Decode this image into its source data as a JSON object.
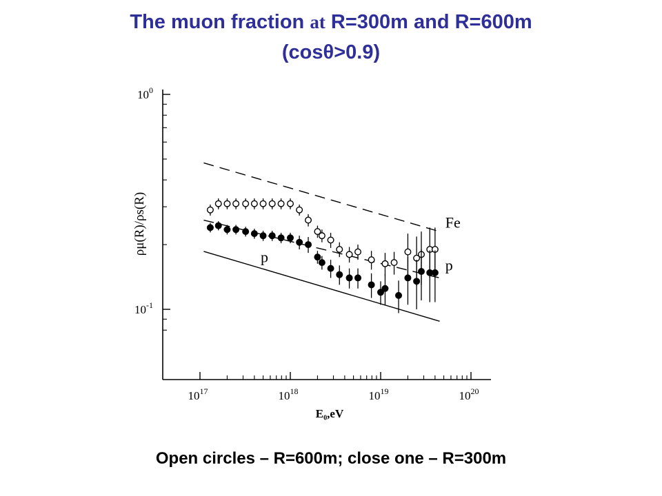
{
  "slide": {
    "title_part1": "The muon fraction ",
    "title_at": "at",
    "title_part2": " R=300m and R=600m",
    "title_line2": "(cosθ>0.9)",
    "caption": "Open circles – R=600m; close one – R=300m"
  },
  "chart_data": {
    "type": "scatter",
    "xlabel": "E₀,eV",
    "ylabel": "ρμ(R)/ρs(R)",
    "x_scale": "log",
    "y_scale": "log",
    "xlim": [
      1e+17,
      1e+20
    ],
    "ylim": [
      0.07,
      1.0
    ],
    "x_ticks": [
      {
        "value": 1e+17,
        "base": "10",
        "exp": "17"
      },
      {
        "value": 1e+18,
        "base": "10",
        "exp": "18"
      },
      {
        "value": 1e+19,
        "base": "10",
        "exp": "19"
      },
      {
        "value": 1e+20,
        "base": "10",
        "exp": "20"
      }
    ],
    "y_ticks": [
      {
        "value": 1.0,
        "base": "10",
        "exp": "0"
      },
      {
        "value": 0.1,
        "base": "10",
        "exp": "-1"
      }
    ],
    "grid": false,
    "series": [
      {
        "name": "R=600m",
        "marker": "open-circle",
        "points": [
          {
            "x": 1.3e+17,
            "y": 0.29,
            "err": 0.017
          },
          {
            "x": 1.6e+17,
            "y": 0.31,
            "err": 0.018
          },
          {
            "x": 2e+17,
            "y": 0.31,
            "err": 0.018
          },
          {
            "x": 2.5e+17,
            "y": 0.31,
            "err": 0.018
          },
          {
            "x": 3.2e+17,
            "y": 0.31,
            "err": 0.018
          },
          {
            "x": 4e+17,
            "y": 0.31,
            "err": 0.018
          },
          {
            "x": 5e+17,
            "y": 0.31,
            "err": 0.018
          },
          {
            "x": 6.3e+17,
            "y": 0.31,
            "err": 0.018
          },
          {
            "x": 7.9e+17,
            "y": 0.31,
            "err": 0.018
          },
          {
            "x": 1e+18,
            "y": 0.31,
            "err": 0.018
          },
          {
            "x": 1.26e+18,
            "y": 0.29,
            "err": 0.017
          },
          {
            "x": 1.58e+18,
            "y": 0.26,
            "err": 0.017
          },
          {
            "x": 2e+18,
            "y": 0.23,
            "err": 0.015
          },
          {
            "x": 2.24e+18,
            "y": 0.22,
            "err": 0.015
          },
          {
            "x": 2.8e+18,
            "y": 0.21,
            "err": 0.017
          },
          {
            "x": 3.5e+18,
            "y": 0.19,
            "err": 0.015
          },
          {
            "x": 4.5e+18,
            "y": 0.18,
            "err": 0.015
          },
          {
            "x": 5.6e+18,
            "y": 0.185,
            "err": 0.015
          },
          {
            "x": 7.9e+18,
            "y": 0.17,
            "err": 0.017
          },
          {
            "x": 1.12e+19,
            "y": 0.163,
            "err": 0.02
          },
          {
            "x": 1.41e+19,
            "y": 0.165,
            "err": 0.02
          },
          {
            "x": 2e+19,
            "y": 0.185,
            "err": 0.04
          },
          {
            "x": 2.5e+19,
            "y": 0.173,
            "err": 0.045
          },
          {
            "x": 2.82e+19,
            "y": 0.18,
            "err": 0.05
          },
          {
            "x": 3.5e+19,
            "y": 0.19,
            "err": 0.05
          },
          {
            "x": 4e+19,
            "y": 0.19,
            "err": 0.05
          }
        ]
      },
      {
        "name": "R=300m",
        "marker": "filled-circle",
        "points": [
          {
            "x": 1.3e+17,
            "y": 0.24,
            "err": 0.012
          },
          {
            "x": 1.6e+17,
            "y": 0.245,
            "err": 0.012
          },
          {
            "x": 2e+17,
            "y": 0.235,
            "err": 0.012
          },
          {
            "x": 2.5e+17,
            "y": 0.235,
            "err": 0.012
          },
          {
            "x": 3.2e+17,
            "y": 0.23,
            "err": 0.012
          },
          {
            "x": 4e+17,
            "y": 0.225,
            "err": 0.012
          },
          {
            "x": 5e+17,
            "y": 0.22,
            "err": 0.012
          },
          {
            "x": 6.3e+17,
            "y": 0.22,
            "err": 0.012
          },
          {
            "x": 7.9e+17,
            "y": 0.215,
            "err": 0.012
          },
          {
            "x": 1e+18,
            "y": 0.215,
            "err": 0.012
          },
          {
            "x": 1.26e+18,
            "y": 0.205,
            "err": 0.015
          },
          {
            "x": 1.58e+18,
            "y": 0.2,
            "err": 0.017
          },
          {
            "x": 2e+18,
            "y": 0.175,
            "err": 0.012
          },
          {
            "x": 2.24e+18,
            "y": 0.165,
            "err": 0.012
          },
          {
            "x": 2.8e+18,
            "y": 0.155,
            "err": 0.015
          },
          {
            "x": 3.5e+18,
            "y": 0.145,
            "err": 0.015
          },
          {
            "x": 4.5e+18,
            "y": 0.14,
            "err": 0.015
          },
          {
            "x": 5.6e+18,
            "y": 0.14,
            "err": 0.015
          },
          {
            "x": 7.9e+18,
            "y": 0.13,
            "err": 0.017
          },
          {
            "x": 1e+19,
            "y": 0.12,
            "err": 0.015
          },
          {
            "x": 1.12e+19,
            "y": 0.125,
            "err": 0.02
          },
          {
            "x": 1.58e+19,
            "y": 0.116,
            "err": 0.02
          },
          {
            "x": 2e+19,
            "y": 0.14,
            "err": 0.035
          },
          {
            "x": 2.5e+19,
            "y": 0.135,
            "err": 0.035
          },
          {
            "x": 2.82e+19,
            "y": 0.15,
            "err": 0.04
          },
          {
            "x": 3.5e+19,
            "y": 0.148,
            "err": 0.04
          },
          {
            "x": 4e+19,
            "y": 0.148,
            "err": 0.04
          }
        ]
      }
    ],
    "reference_lines": [
      {
        "name": "Fe",
        "style": "dashed",
        "points": [
          {
            "x": 1.1e+17,
            "y": 0.48
          },
          {
            "x": 4.5e+19,
            "y": 0.23
          }
        ]
      },
      {
        "name": "p",
        "style": "dashed",
        "points": [
          {
            "x": 1.1e+17,
            "y": 0.26
          },
          {
            "x": 4.5e+19,
            "y": 0.14
          }
        ]
      },
      {
        "name": "p",
        "style": "solid",
        "points": [
          {
            "x": 1.1e+17,
            "y": 0.186
          },
          {
            "x": 4.5e+19,
            "y": 0.088
          }
        ]
      }
    ],
    "annotations": [
      {
        "text": "Fe",
        "x": 5.2e+19,
        "y": 0.24
      },
      {
        "text": "p",
        "x": 5.2e+19,
        "y": 0.152
      },
      {
        "text": "p",
        "x": 4.7e+17,
        "y": 0.166
      }
    ]
  }
}
